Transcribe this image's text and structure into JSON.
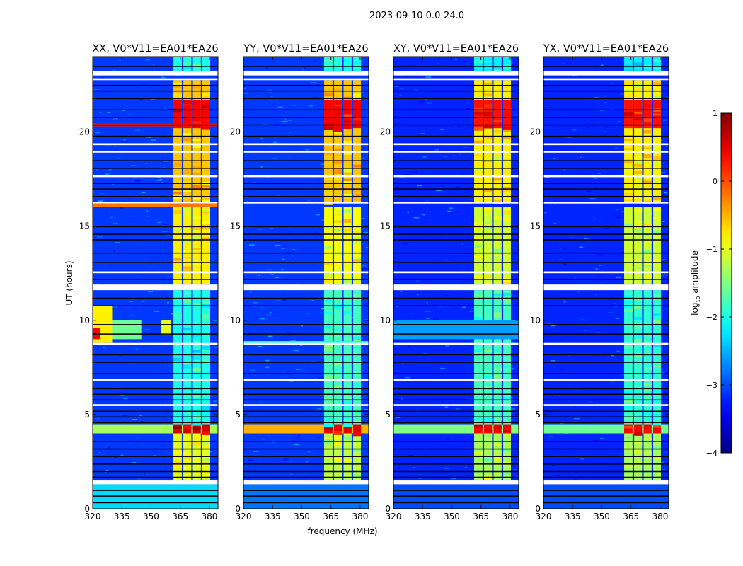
{
  "chart_data": {
    "type": "heatmap",
    "title": "2023-09-10 0.0-24.0",
    "xlabel": "frequency (MHz)",
    "ylabel": "UT (hours)",
    "xlim": [
      320,
      384.4
    ],
    "ylim": [
      0,
      24
    ],
    "xticks": [
      320,
      335,
      350,
      365,
      380
    ],
    "yticks": [
      0,
      5,
      10,
      15,
      20
    ],
    "colorbar": {
      "label": "log10 amplitude",
      "label_main": "log",
      "label_sub": "10",
      "label_rest": " amplitude",
      "range": [
        -4,
        1
      ],
      "ticks": [
        1,
        0,
        -1,
        -2,
        -3,
        -4
      ],
      "tick_labels": [
        "1",
        "0",
        "−1",
        "−2",
        "−3",
        "−4"
      ],
      "colormap": "jet"
    },
    "flagged_white_hours": [
      [
        23.0,
        23.25
      ],
      [
        22.75,
        22.85
      ],
      [
        19.3,
        19.4
      ],
      [
        18.9,
        19.0
      ],
      [
        17.6,
        17.7
      ],
      [
        16.2,
        16.3
      ],
      [
        12.5,
        12.6
      ],
      [
        11.6,
        11.9
      ],
      [
        8.7,
        8.8
      ],
      [
        6.8,
        6.9
      ],
      [
        5.45,
        5.55
      ],
      [
        1.3,
        1.5
      ]
    ],
    "zero_rows_hours": [
      23.5,
      22.5,
      22.2,
      21.8,
      21.2,
      20.8,
      20.4,
      19.8,
      18.5,
      18.1,
      17.3,
      17.0,
      16.6,
      15.0,
      14.6,
      14.3,
      13.6,
      13.1,
      12.2,
      11.2,
      10.8,
      9.8,
      9.3,
      8.2,
      7.8,
      7.2,
      6.4,
      6.1,
      5.8,
      5.2,
      4.9,
      4.6,
      3.6,
      3.2,
      2.8,
      2.4,
      2.0,
      1.7,
      1.0,
      0.7,
      0.35
    ],
    "band_channels_mhz": [
      [
        361.5,
        365.8
      ],
      [
        366.6,
        370.7
      ],
      [
        371.5,
        375.6
      ],
      [
        376.4,
        380.4
      ]
    ],
    "panels": [
      {
        "title": "XX, V0*V11=EA01*EA26",
        "background_level": -3.1,
        "regions": [
          {
            "t": [
              0,
              1.3
            ],
            "f": [
              320,
              384.4
            ],
            "level": -2.3
          },
          {
            "t": [
              1.5,
              4.0
            ],
            "f": [
              361.5,
              380.4
            ],
            "level": -1.0,
            "band": true
          },
          {
            "t": [
              4.0,
              4.45
            ],
            "f": [
              320,
              384.4
            ],
            "level": -1.3
          },
          {
            "t": [
              4.0,
              4.45
            ],
            "f": [
              361.5,
              380.4
            ],
            "level": 0.6,
            "band": true
          },
          {
            "t": [
              4.45,
              11.6
            ],
            "f": [
              361.5,
              380.4
            ],
            "level": -2.0,
            "band": true
          },
          {
            "t": [
              8.8,
              10.8
            ],
            "f": [
              320,
              330
            ],
            "level": -0.8
          },
          {
            "t": [
              9.0,
              9.6
            ],
            "f": [
              320,
              324
            ],
            "level": 0.4
          },
          {
            "t": [
              9.0,
              10.0
            ],
            "f": [
              330,
              345
            ],
            "level": -1.6
          },
          {
            "t": [
              9.2,
              10.0
            ],
            "f": [
              355,
              360
            ],
            "level": -1.0
          },
          {
            "t": [
              11.9,
              16.0
            ],
            "f": [
              361.5,
              380.4
            ],
            "level": -0.8,
            "band": true
          },
          {
            "t": [
              16.0,
              16.15
            ],
            "f": [
              320,
              384.4
            ],
            "level": -0.2
          },
          {
            "t": [
              16.3,
              22.75
            ],
            "f": [
              361.5,
              380.4
            ],
            "level": -0.6,
            "band": true
          },
          {
            "t": [
              20.2,
              21.7
            ],
            "f": [
              361.5,
              380.4
            ],
            "level": 0.4,
            "band": true
          },
          {
            "t": [
              20.3,
              20.45
            ],
            "f": [
              320,
              384.4
            ],
            "level": 0.3
          },
          {
            "t": [
              23.25,
              24
            ],
            "f": [
              361.5,
              380.4
            ],
            "level": -2.0,
            "band": true
          }
        ]
      },
      {
        "title": "YY, V0*V11=EA01*EA26",
        "background_level": -3.1,
        "regions": [
          {
            "t": [
              0,
              1.3
            ],
            "f": [
              320,
              384.4
            ],
            "level": -2.8
          },
          {
            "t": [
              1.5,
              4.0
            ],
            "f": [
              361.5,
              380.4
            ],
            "level": -1.2,
            "band": true
          },
          {
            "t": [
              4.0,
              4.45
            ],
            "f": [
              320,
              384.4
            ],
            "level": -0.5
          },
          {
            "t": [
              4.0,
              4.45
            ],
            "f": [
              361.5,
              380.4
            ],
            "level": 0.5,
            "band": true
          },
          {
            "t": [
              4.45,
              11.6
            ],
            "f": [
              361.5,
              380.4
            ],
            "level": -1.8,
            "band": true
          },
          {
            "t": [
              8.7,
              8.9
            ],
            "f": [
              320,
              384.4
            ],
            "level": -2.0
          },
          {
            "t": [
              11.9,
              16.0
            ],
            "f": [
              361.5,
              380.4
            ],
            "level": -0.9,
            "band": true
          },
          {
            "t": [
              16.3,
              22.75
            ],
            "f": [
              361.5,
              380.4
            ],
            "level": -0.6,
            "band": true
          },
          {
            "t": [
              20.2,
              21.7
            ],
            "f": [
              361.5,
              380.4
            ],
            "level": 0.4,
            "band": true
          },
          {
            "t": [
              23.25,
              24
            ],
            "f": [
              361.5,
              380.4
            ],
            "level": -2.0,
            "band": true
          }
        ]
      },
      {
        "title": "XY, V0*V11=EA01*EA26",
        "background_level": -3.2,
        "regions": [
          {
            "t": [
              0,
              1.3
            ],
            "f": [
              320,
              384.4
            ],
            "level": -3.0
          },
          {
            "t": [
              1.5,
              4.0
            ],
            "f": [
              361.5,
              380.4
            ],
            "level": -1.3,
            "band": true
          },
          {
            "t": [
              4.0,
              4.45
            ],
            "f": [
              320,
              384.4
            ],
            "level": -1.5
          },
          {
            "t": [
              4.0,
              4.45
            ],
            "f": [
              361.5,
              380.4
            ],
            "level": 0.4,
            "band": true
          },
          {
            "t": [
              4.45,
              11.6
            ],
            "f": [
              361.5,
              380.4
            ],
            "level": -1.8,
            "band": true
          },
          {
            "t": [
              9.0,
              10.0
            ],
            "f": [
              320,
              384.4
            ],
            "level": -2.6
          },
          {
            "t": [
              11.9,
              16.0
            ],
            "f": [
              361.5,
              380.4
            ],
            "level": -1.1,
            "band": true
          },
          {
            "t": [
              16.3,
              22.75
            ],
            "f": [
              361.5,
              380.4
            ],
            "level": -0.8,
            "band": true
          },
          {
            "t": [
              20.2,
              21.7
            ],
            "f": [
              361.5,
              380.4
            ],
            "level": 0.3,
            "band": true
          },
          {
            "t": [
              23.25,
              24
            ],
            "f": [
              361.5,
              380.4
            ],
            "level": -2.2,
            "band": true
          }
        ]
      },
      {
        "title": "YX, V0*V11=EA01*EA26",
        "background_level": -3.2,
        "regions": [
          {
            "t": [
              0,
              1.3
            ],
            "f": [
              320,
              384.4
            ],
            "level": -3.0
          },
          {
            "t": [
              1.5,
              4.0
            ],
            "f": [
              361.5,
              380.4
            ],
            "level": -1.3,
            "band": true
          },
          {
            "t": [
              4.0,
              4.45
            ],
            "f": [
              320,
              384.4
            ],
            "level": -1.6
          },
          {
            "t": [
              4.0,
              4.45
            ],
            "f": [
              361.5,
              380.4
            ],
            "level": 0.4,
            "band": true
          },
          {
            "t": [
              4.45,
              11.6
            ],
            "f": [
              361.5,
              380.4
            ],
            "level": -1.9,
            "band": true
          },
          {
            "t": [
              11.9,
              16.0
            ],
            "f": [
              361.5,
              380.4
            ],
            "level": -1.1,
            "band": true
          },
          {
            "t": [
              16.3,
              22.75
            ],
            "f": [
              361.5,
              380.4
            ],
            "level": -0.8,
            "band": true
          },
          {
            "t": [
              20.2,
              21.7
            ],
            "f": [
              361.5,
              380.4
            ],
            "level": 0.3,
            "band": true
          },
          {
            "t": [
              23.25,
              24
            ],
            "f": [
              361.5,
              380.4
            ],
            "level": -2.2,
            "band": true
          }
        ]
      }
    ]
  },
  "colors": {
    "flagged": "#ffffff",
    "zero": "#000000"
  }
}
